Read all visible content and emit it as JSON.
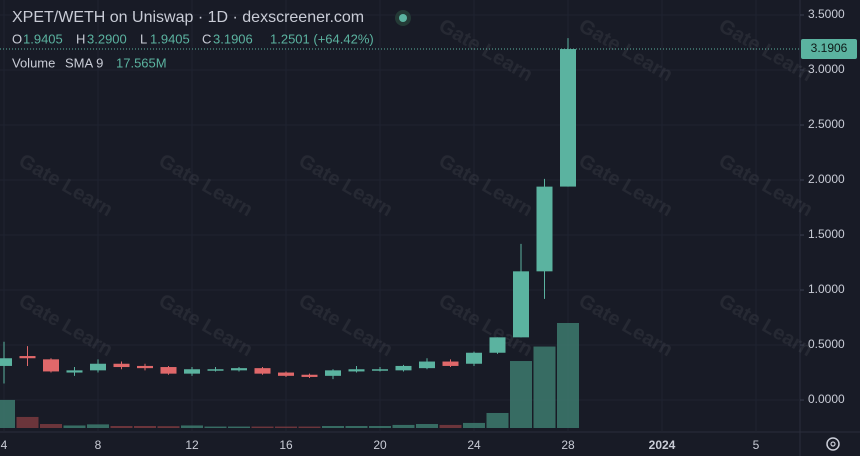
{
  "chart_data": {
    "type": "candlestick",
    "title": "XPET/WETH on Uniswap · 1D · dexscreener.com",
    "ohlc_legend": {
      "o_key": "O",
      "o": "1.9405",
      "h_key": "H",
      "h": "3.2900",
      "l_key": "L",
      "l": "1.9405",
      "c_key": "C",
      "c": "3.1906",
      "change": "1.2501 (+64.42%)"
    },
    "volume_legend": {
      "name": "Volume",
      "indicator": "SMA 9",
      "value": "17.565M"
    },
    "watermark": "Gate Learn",
    "categories": [
      "4",
      null,
      null,
      null,
      "8",
      null,
      null,
      null,
      "12",
      null,
      null,
      null,
      "16",
      null,
      null,
      null,
      "20",
      null,
      null,
      null,
      "24",
      null,
      null,
      null,
      "28",
      null,
      null,
      null,
      "2024",
      null,
      null,
      null,
      "5"
    ],
    "open": [
      0.31,
      0.4,
      0.37,
      0.25,
      0.27,
      0.33,
      0.31,
      0.3,
      0.24,
      0.27,
      0.27,
      0.29,
      0.25,
      0.23,
      0.22,
      0.26,
      0.27,
      0.27,
      0.29,
      0.35,
      0.33,
      0.43,
      0.57,
      1.17,
      1.9405,
      null,
      null,
      null,
      null,
      null,
      null,
      null,
      null
    ],
    "high": [
      0.53,
      0.49,
      0.38,
      0.3,
      0.37,
      0.35,
      0.33,
      0.31,
      0.3,
      0.3,
      0.3,
      0.3,
      0.26,
      0.24,
      0.28,
      0.31,
      0.3,
      0.32,
      0.38,
      0.37,
      0.44,
      0.57,
      1.42,
      2.01,
      3.29,
      null,
      null,
      null,
      null,
      null,
      null,
      null,
      null
    ],
    "low": [
      0.15,
      0.31,
      0.25,
      0.22,
      0.25,
      0.28,
      0.27,
      0.23,
      0.22,
      0.26,
      0.26,
      0.23,
      0.21,
      0.2,
      0.19,
      0.25,
      0.26,
      0.26,
      0.28,
      0.3,
      0.31,
      0.42,
      0.57,
      0.92,
      1.9405,
      null,
      null,
      null,
      null,
      null,
      null,
      null,
      null
    ],
    "close": [
      0.38,
      0.38,
      0.26,
      0.27,
      0.33,
      0.3,
      0.29,
      0.24,
      0.28,
      0.28,
      0.29,
      0.24,
      0.22,
      0.21,
      0.27,
      0.28,
      0.28,
      0.31,
      0.35,
      0.31,
      0.43,
      0.57,
      1.17,
      1.94,
      3.1906,
      null,
      null,
      null,
      null,
      null,
      null,
      null,
      null
    ],
    "volume": [
      15.5,
      6.1,
      2.2,
      1.4,
      2.0,
      1.1,
      1.1,
      1.0,
      1.4,
      0.8,
      0.8,
      0.8,
      0.8,
      0.8,
      1.1,
      1.1,
      1.1,
      1.7,
      2.2,
      1.7,
      2.8,
      8.3,
      37,
      45,
      58,
      null,
      null,
      null,
      null,
      null,
      null,
      null,
      null
    ],
    "up_color": "#5bb3a0",
    "down_color": "#e0686a",
    "up_volume_color": "#3d7a6e",
    "down_volume_color": "#7a3a3f",
    "ylim": [
      -0.245,
      3.6364
    ],
    "yticks": [
      {
        "value": 0,
        "label": "0.0000"
      },
      {
        "value": 0.5,
        "label": "0.5000"
      },
      {
        "value": 1,
        "label": "1.0000"
      },
      {
        "value": 1.5,
        "label": "1.5000"
      },
      {
        "value": 2,
        "label": "2.0000"
      },
      {
        "value": 2.5,
        "label": "2.5000"
      },
      {
        "value": 3,
        "label": "3.0000"
      },
      {
        "value": 3.5,
        "label": "3.5000"
      }
    ],
    "last_price": {
      "value": 3.1906,
      "label": "3.1906"
    },
    "grid": true
  }
}
